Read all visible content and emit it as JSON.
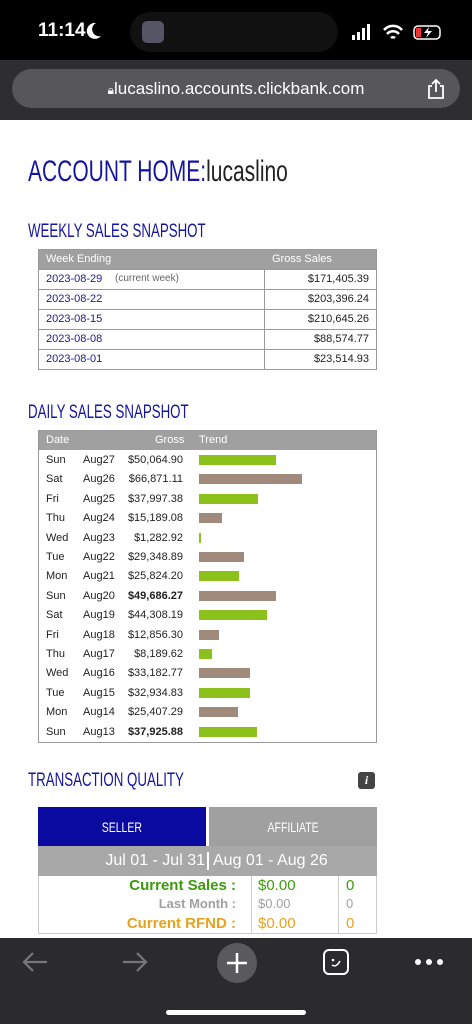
{
  "status_bar": {
    "time": "11:14"
  },
  "browser": {
    "url": "lucaslino.accounts.clickbank.com"
  },
  "header": {
    "title": "ACCOUNT HOME:",
    "username": "lucaslino"
  },
  "weekly": {
    "title": "WEEKLY SALES SNAPSHOT",
    "columns": [
      "Week Ending",
      "Gross Sales"
    ],
    "rows": [
      {
        "week": "2023-08-29",
        "note": "(current week)",
        "gross": "$171,405.39"
      },
      {
        "week": "2023-08-22",
        "gross": "$203,396.24"
      },
      {
        "week": "2023-08-15",
        "gross": "$210,645.26"
      },
      {
        "week": "2023-08-08",
        "gross": "$88,574.77"
      },
      {
        "week": "2023-08-01",
        "gross": "$23,514.93"
      }
    ]
  },
  "daily": {
    "title": "DAILY SALES SNAPSHOT",
    "columns": [
      "Date",
      "Gross",
      "Trend"
    ],
    "rows": [
      {
        "day": "Sun",
        "date": "Aug27",
        "gross": "$50,064.90"
      },
      {
        "day": "Sat",
        "date": "Aug26",
        "gross": "$66,871.11"
      },
      {
        "day": "Fri",
        "date": "Aug25",
        "gross": "$37,997.38"
      },
      {
        "day": "Thu",
        "date": "Aug24",
        "gross": "$15,189.08"
      },
      {
        "day": "Wed",
        "date": "Aug23",
        "gross": "$1,282.92"
      },
      {
        "day": "Tue",
        "date": "Aug22",
        "gross": "$29,348.89"
      },
      {
        "day": "Mon",
        "date": "Aug21",
        "gross": "$25,824.20"
      },
      {
        "day": "Sun",
        "date": "Aug20",
        "gross": "$49,686.27",
        "bold": true
      },
      {
        "day": "Sat",
        "date": "Aug19",
        "gross": "$44,308.19"
      },
      {
        "day": "Fri",
        "date": "Aug18",
        "gross": "$12,856.30"
      },
      {
        "day": "Thu",
        "date": "Aug17",
        "gross": "$8,189.62"
      },
      {
        "day": "Wed",
        "date": "Aug16",
        "gross": "$33,182.77"
      },
      {
        "day": "Tue",
        "date": "Aug15",
        "gross": "$32,934.83"
      },
      {
        "day": "Mon",
        "date": "Aug14",
        "gross": "$25,407.29"
      },
      {
        "day": "Sun",
        "date": "Aug13",
        "gross": "$37,925.88",
        "bold": true
      }
    ]
  },
  "quality": {
    "title": "TRANSACTION QUALITY",
    "info": "i",
    "tabs": [
      "SELLER",
      "AFFILIATE"
    ],
    "periods": [
      "Jul 01 - Jul 31",
      "Aug 01 - Aug 26"
    ],
    "rows": [
      {
        "label": "Current Sales :",
        "amount": "$0.00",
        "count": "0",
        "color": "#3c9a0c"
      },
      {
        "label": "Last Month :",
        "amount": "$0.00",
        "count": "0",
        "color": "#a0a0a0"
      },
      {
        "label": "Current RFND :",
        "amount": "$0.00",
        "count": "0",
        "color": "#e8a21c"
      }
    ]
  }
}
